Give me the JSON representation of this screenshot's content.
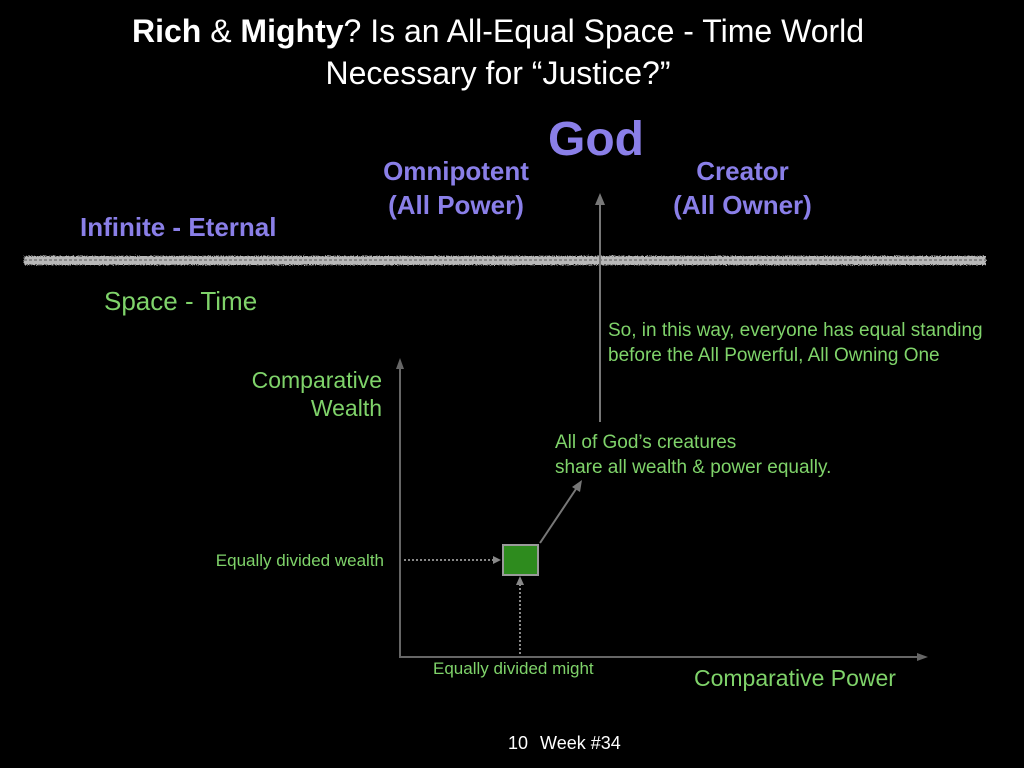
{
  "title": {
    "rich": "Rich",
    "amp": " & ",
    "mighty": "Mighty",
    "rest_line1": "?  Is an All-Equal Space - Time World",
    "line2": "Necessary for “Justice?”"
  },
  "god": "God",
  "omnipotent": {
    "line1": "Omnipotent",
    "line2": "(All Power)"
  },
  "creator": {
    "line1": "Creator",
    "line2": "(All Owner)"
  },
  "infinite_label": "Infinite - Eternal",
  "space_time_label": "Space - Time",
  "standing_note": {
    "line1": "So, in this way, everyone has equal standing",
    "line2": "before the All Powerful,  All Owning One"
  },
  "share_note": {
    "line1": "All of God’s creatures",
    "line2": "share all wealth & power equally."
  },
  "y_axis_label": {
    "line1": "Comparative",
    "line2": "Wealth"
  },
  "x_axis_label": "Comparative Power",
  "equally_divided_wealth": "Equally divided wealth",
  "equally_divided_might": "Equally divided might",
  "footer": {
    "page_number": "10",
    "week": "Week #34"
  },
  "colors": {
    "background": "#000000",
    "title_text": "#ffffff",
    "divine_purple": "#8a7fe8",
    "earthly_green": "#7fd36a",
    "square_fill": "#2e8b1e",
    "axis_gray": "#777777"
  }
}
